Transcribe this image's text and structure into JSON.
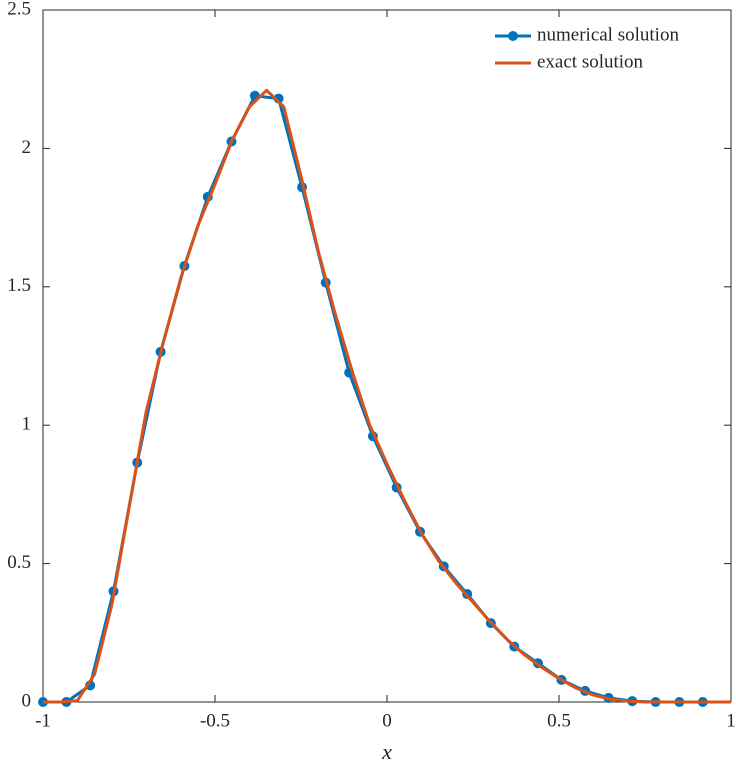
{
  "chart_data": {
    "type": "line",
    "xlabel": "x",
    "xlim": [
      -1,
      1
    ],
    "ylim": [
      0,
      2.5
    ],
    "xticks": [
      -1,
      -0.5,
      0,
      0.5,
      1
    ],
    "yticks": [
      0,
      0.5,
      1,
      1.5,
      2,
      2.5
    ],
    "legend": "upper right",
    "series": [
      {
        "name": "numerical solution",
        "color": "#0072BD",
        "marker": "circle",
        "x": [
          -1,
          -0.932,
          -0.863,
          -0.795,
          -0.726,
          -0.658,
          -0.589,
          -0.521,
          -0.452,
          -0.384,
          -0.315,
          -0.247,
          -0.178,
          -0.11,
          -0.041,
          0.028,
          0.096,
          0.165,
          0.233,
          0.302,
          0.37,
          0.439,
          0.507,
          0.576,
          0.644,
          0.713,
          0.781,
          0.85,
          0.918
        ],
        "values": [
          0,
          0,
          0.06,
          0.4,
          0.865,
          1.265,
          1.575,
          1.825,
          2.025,
          2.19,
          2.18,
          1.86,
          1.515,
          1.19,
          0.96,
          0.775,
          0.615,
          0.49,
          0.39,
          0.285,
          0.2,
          0.14,
          0.08,
          0.04,
          0.015,
          0.003,
          0,
          0,
          0
        ]
      },
      {
        "name": "exact solution",
        "color": "#D95319",
        "x": [
          -1,
          -0.95,
          -0.9,
          -0.85,
          -0.8,
          -0.75,
          -0.7,
          -0.65,
          -0.6,
          -0.55,
          -0.5,
          -0.45,
          -0.4,
          -0.35,
          -0.3,
          -0.25,
          -0.2,
          -0.15,
          -0.1,
          -0.05,
          0,
          0.05,
          0.1,
          0.15,
          0.2,
          0.25,
          0.3,
          0.35,
          0.4,
          0.45,
          0.5,
          0.55,
          0.6,
          0.65,
          0.7,
          0.75,
          0.8,
          0.85,
          0.9,
          0.95,
          1
        ],
        "values": [
          0,
          0,
          0.005,
          0.1,
          0.35,
          0.7,
          1.05,
          1.3,
          1.53,
          1.72,
          1.87,
          2.03,
          2.15,
          2.21,
          2.15,
          1.9,
          1.63,
          1.4,
          1.19,
          1.0,
          0.86,
          0.73,
          0.61,
          0.51,
          0.43,
          0.36,
          0.29,
          0.225,
          0.17,
          0.125,
          0.085,
          0.05,
          0.025,
          0.01,
          0.003,
          0,
          0,
          0,
          0,
          0,
          0
        ]
      }
    ]
  }
}
